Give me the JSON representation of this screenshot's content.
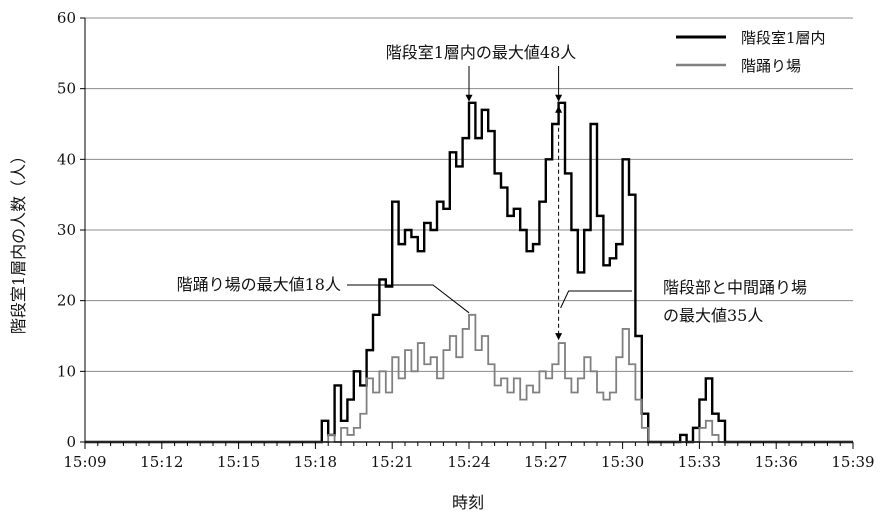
{
  "chart_data": {
    "type": "line",
    "xlabel": "時刻",
    "ylabel": "階段室1層内の人数（人）",
    "ylim": [
      0,
      60
    ],
    "yticks": [
      0,
      10,
      20,
      30,
      40,
      50,
      60
    ],
    "xlim": [
      "15:09",
      "15:39"
    ],
    "xticks": [
      "15:09",
      "15:12",
      "15:15",
      "15:18",
      "15:21",
      "15:24",
      "15:27",
      "15:30",
      "15:33",
      "15:36",
      "15:39"
    ],
    "grid": "horizontal",
    "legend_position": "top-right",
    "annotations": {
      "max_stair": "階段室1層内の最大値48人",
      "max_landing": "階踊り場の最大値18人",
      "max_combined_line1": "階段部と中間踊り場",
      "max_combined_line2": "の最大値35人"
    },
    "series": [
      {
        "name": "階段室1層内",
        "color": "#000000",
        "points": [
          [
            "15:09:00",
            0
          ],
          [
            "15:18:00",
            0
          ],
          [
            "15:18:15",
            3
          ],
          [
            "15:18:30",
            1
          ],
          [
            "15:18:45",
            8
          ],
          [
            "15:19:00",
            3
          ],
          [
            "15:19:15",
            6
          ],
          [
            "15:19:30",
            10
          ],
          [
            "15:19:45",
            8
          ],
          [
            "15:20:00",
            13
          ],
          [
            "15:20:15",
            18
          ],
          [
            "15:20:30",
            23
          ],
          [
            "15:20:45",
            22
          ],
          [
            "15:21:00",
            34
          ],
          [
            "15:21:15",
            28
          ],
          [
            "15:21:30",
            30
          ],
          [
            "15:21:45",
            29
          ],
          [
            "15:22:00",
            27
          ],
          [
            "15:22:15",
            31
          ],
          [
            "15:22:30",
            30
          ],
          [
            "15:22:45",
            34
          ],
          [
            "15:23:00",
            33
          ],
          [
            "15:23:15",
            41
          ],
          [
            "15:23:30",
            39
          ],
          [
            "15:23:45",
            43
          ],
          [
            "15:24:00",
            48
          ],
          [
            "15:24:15",
            43
          ],
          [
            "15:24:30",
            47
          ],
          [
            "15:24:45",
            44
          ],
          [
            "15:25:00",
            38
          ],
          [
            "15:25:15",
            36
          ],
          [
            "15:25:30",
            32
          ],
          [
            "15:25:45",
            33
          ],
          [
            "15:26:00",
            30
          ],
          [
            "15:26:15",
            27
          ],
          [
            "15:26:30",
            28
          ],
          [
            "15:26:45",
            34
          ],
          [
            "15:27:00",
            40
          ],
          [
            "15:27:15",
            45
          ],
          [
            "15:27:30",
            48
          ],
          [
            "15:27:45",
            38
          ],
          [
            "15:28:00",
            30
          ],
          [
            "15:28:15",
            24
          ],
          [
            "15:28:30",
            30
          ],
          [
            "15:28:45",
            45
          ],
          [
            "15:29:00",
            32
          ],
          [
            "15:29:15",
            25
          ],
          [
            "15:29:30",
            26
          ],
          [
            "15:29:45",
            28
          ],
          [
            "15:30:00",
            40
          ],
          [
            "15:30:15",
            35
          ],
          [
            "15:30:30",
            15
          ],
          [
            "15:30:45",
            4
          ],
          [
            "15:31:00",
            0
          ],
          [
            "15:32:15",
            1
          ],
          [
            "15:32:30",
            0
          ],
          [
            "15:32:45",
            2
          ],
          [
            "15:33:00",
            6
          ],
          [
            "15:33:15",
            9
          ],
          [
            "15:33:30",
            4
          ],
          [
            "15:33:45",
            3
          ],
          [
            "15:34:00",
            0
          ],
          [
            "15:39:00",
            0
          ]
        ]
      },
      {
        "name": "階踊り場",
        "color": "#808080",
        "points": [
          [
            "15:09:00",
            0
          ],
          [
            "15:18:15",
            0
          ],
          [
            "15:18:30",
            1
          ],
          [
            "15:18:45",
            0
          ],
          [
            "15:19:00",
            2
          ],
          [
            "15:19:15",
            1
          ],
          [
            "15:19:30",
            2
          ],
          [
            "15:19:45",
            4
          ],
          [
            "15:20:00",
            9
          ],
          [
            "15:20:15",
            7
          ],
          [
            "15:20:30",
            10
          ],
          [
            "15:20:45",
            7
          ],
          [
            "15:21:00",
            12
          ],
          [
            "15:21:15",
            9
          ],
          [
            "15:21:30",
            13
          ],
          [
            "15:21:45",
            10
          ],
          [
            "15:22:00",
            14
          ],
          [
            "15:22:15",
            11
          ],
          [
            "15:22:30",
            12
          ],
          [
            "15:22:45",
            9
          ],
          [
            "15:23:00",
            13
          ],
          [
            "15:23:15",
            15
          ],
          [
            "15:23:30",
            12
          ],
          [
            "15:23:45",
            16
          ],
          [
            "15:24:00",
            18
          ],
          [
            "15:24:15",
            13
          ],
          [
            "15:24:30",
            15
          ],
          [
            "15:24:45",
            11
          ],
          [
            "15:25:00",
            8
          ],
          [
            "15:25:15",
            9
          ],
          [
            "15:25:30",
            7
          ],
          [
            "15:25:45",
            9
          ],
          [
            "15:26:00",
            6
          ],
          [
            "15:26:15",
            8
          ],
          [
            "15:26:30",
            7
          ],
          [
            "15:26:45",
            10
          ],
          [
            "15:27:00",
            9
          ],
          [
            "15:27:15",
            11
          ],
          [
            "15:27:30",
            14
          ],
          [
            "15:27:45",
            9
          ],
          [
            "15:28:00",
            7
          ],
          [
            "15:28:15",
            9
          ],
          [
            "15:28:30",
            12
          ],
          [
            "15:28:45",
            10
          ],
          [
            "15:29:00",
            7
          ],
          [
            "15:29:15",
            6
          ],
          [
            "15:29:30",
            7
          ],
          [
            "15:29:45",
            12
          ],
          [
            "15:30:00",
            16
          ],
          [
            "15:30:15",
            11
          ],
          [
            "15:30:30",
            6
          ],
          [
            "15:30:45",
            2
          ],
          [
            "15:31:00",
            0
          ],
          [
            "15:32:45",
            0
          ],
          [
            "15:33:00",
            2
          ],
          [
            "15:33:15",
            3
          ],
          [
            "15:33:30",
            1
          ],
          [
            "15:33:45",
            0
          ],
          [
            "15:39:00",
            0
          ]
        ]
      }
    ]
  }
}
